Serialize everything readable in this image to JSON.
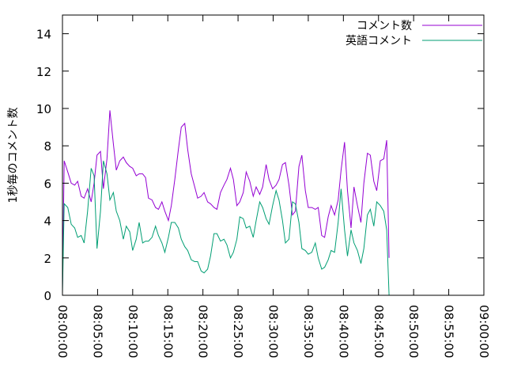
{
  "chart_data": {
    "type": "line",
    "title": "",
    "xlabel": "",
    "ylabel": "1秒毎のコメント数",
    "xlim": [
      "08:00:00",
      "09:00:00"
    ],
    "ylim": [
      0,
      15
    ],
    "yticks": [
      0,
      2,
      4,
      6,
      8,
      10,
      12,
      14
    ],
    "xticks": [
      "08:00:00",
      "08:05:00",
      "08:10:00",
      "08:15:00",
      "08:20:00",
      "08:25:00",
      "08:30:00",
      "08:35:00",
      "08:40:00",
      "08:45:00",
      "08:50:00",
      "08:55:00",
      "09:00:00"
    ],
    "grid": false,
    "legend_position": "top-right",
    "series": [
      {
        "name": "コメント数",
        "color": "#9400d3",
        "points": [
          [
            "08:00:00",
            0.4
          ],
          [
            "08:00:15",
            7.2
          ],
          [
            "08:00:45",
            6.6
          ],
          [
            "08:01:15",
            6.0
          ],
          [
            "08:01:45",
            5.9
          ],
          [
            "08:02:10",
            6.1
          ],
          [
            "08:02:40",
            5.3
          ],
          [
            "08:03:05",
            5.2
          ],
          [
            "08:03:35",
            5.7
          ],
          [
            "08:04:05",
            5.0
          ],
          [
            "08:04:30",
            6.0
          ],
          [
            "08:04:55",
            7.5
          ],
          [
            "08:05:25",
            7.7
          ],
          [
            "08:05:50",
            5.7
          ],
          [
            "08:06:20",
            7.3
          ],
          [
            "08:06:45",
            9.9
          ],
          [
            "08:07:15",
            8.1
          ],
          [
            "08:07:40",
            6.7
          ],
          [
            "08:08:10",
            7.2
          ],
          [
            "08:08:40",
            7.4
          ],
          [
            "08:09:05",
            7.1
          ],
          [
            "08:09:35",
            6.9
          ],
          [
            "08:10:00",
            6.8
          ],
          [
            "08:10:30",
            6.4
          ],
          [
            "08:10:55",
            6.5
          ],
          [
            "08:11:25",
            6.5
          ],
          [
            "08:11:50",
            6.3
          ],
          [
            "08:12:15",
            5.2
          ],
          [
            "08:12:45",
            5.1
          ],
          [
            "08:13:15",
            4.7
          ],
          [
            "08:13:40",
            4.6
          ],
          [
            "08:14:10",
            5.0
          ],
          [
            "08:14:35",
            4.5
          ],
          [
            "08:15:05",
            4.0
          ],
          [
            "08:15:30",
            4.8
          ],
          [
            "08:16:00",
            6.2
          ],
          [
            "08:16:30",
            7.8
          ],
          [
            "08:16:55",
            9.0
          ],
          [
            "08:17:25",
            9.2
          ],
          [
            "08:17:50",
            7.8
          ],
          [
            "08:18:20",
            6.5
          ],
          [
            "08:18:50",
            5.8
          ],
          [
            "08:19:15",
            5.2
          ],
          [
            "08:19:45",
            5.3
          ],
          [
            "08:20:10",
            5.5
          ],
          [
            "08:20:40",
            5.0
          ],
          [
            "08:21:05",
            4.9
          ],
          [
            "08:21:35",
            4.7
          ],
          [
            "08:22:00",
            4.6
          ],
          [
            "08:22:30",
            5.5
          ],
          [
            "08:23:00",
            5.9
          ],
          [
            "08:23:25",
            6.2
          ],
          [
            "08:23:55",
            6.8
          ],
          [
            "08:24:20",
            6.2
          ],
          [
            "08:24:50",
            4.8
          ],
          [
            "08:25:15",
            5.0
          ],
          [
            "08:25:45",
            5.5
          ],
          [
            "08:26:10",
            6.6
          ],
          [
            "08:26:40",
            6.1
          ],
          [
            "08:27:10",
            5.3
          ],
          [
            "08:27:35",
            5.8
          ],
          [
            "08:28:05",
            5.4
          ],
          [
            "08:28:30",
            5.8
          ],
          [
            "08:29:00",
            7.0
          ],
          [
            "08:29:25",
            6.2
          ],
          [
            "08:29:55",
            5.7
          ],
          [
            "08:30:25",
            5.9
          ],
          [
            "08:30:50",
            6.2
          ],
          [
            "08:31:20",
            7.0
          ],
          [
            "08:31:45",
            7.1
          ],
          [
            "08:32:15",
            5.9
          ],
          [
            "08:32:45",
            4.3
          ],
          [
            "08:33:10",
            4.5
          ],
          [
            "08:33:40",
            6.9
          ],
          [
            "08:34:05",
            7.5
          ],
          [
            "08:34:35",
            5.6
          ],
          [
            "08:35:00",
            4.7
          ],
          [
            "08:35:30",
            4.7
          ],
          [
            "08:36:00",
            4.6
          ],
          [
            "08:36:25",
            4.7
          ],
          [
            "08:36:55",
            3.2
          ],
          [
            "08:37:20",
            3.1
          ],
          [
            "08:37:50",
            4.2
          ],
          [
            "08:38:15",
            4.8
          ],
          [
            "08:38:45",
            4.3
          ],
          [
            "08:39:15",
            5.1
          ],
          [
            "08:39:40",
            6.7
          ],
          [
            "08:40:10",
            8.2
          ],
          [
            "08:40:35",
            5.6
          ],
          [
            "08:41:05",
            3.6
          ],
          [
            "08:41:30",
            5.8
          ],
          [
            "08:42:00",
            4.8
          ],
          [
            "08:42:30",
            3.9
          ],
          [
            "08:42:55",
            6.0
          ],
          [
            "08:43:25",
            7.6
          ],
          [
            "08:43:50",
            7.5
          ],
          [
            "08:44:20",
            6.1
          ],
          [
            "08:44:45",
            5.6
          ],
          [
            "08:45:15",
            7.2
          ],
          [
            "08:45:45",
            7.3
          ],
          [
            "08:46:10",
            8.3
          ],
          [
            "08:46:30",
            2.0
          ]
        ]
      },
      {
        "name": "英語コメント",
        "color": "#009e73",
        "points": [
          [
            "08:00:00",
            0.1
          ],
          [
            "08:00:15",
            4.9
          ],
          [
            "08:00:45",
            4.7
          ],
          [
            "08:01:15",
            3.8
          ],
          [
            "08:01:45",
            3.6
          ],
          [
            "08:02:10",
            3.1
          ],
          [
            "08:02:40",
            3.2
          ],
          [
            "08:03:05",
            2.8
          ],
          [
            "08:03:35",
            4.5
          ],
          [
            "08:04:05",
            6.8
          ],
          [
            "08:04:30",
            6.4
          ],
          [
            "08:04:55",
            2.5
          ],
          [
            "08:05:25",
            4.5
          ],
          [
            "08:05:50",
            7.2
          ],
          [
            "08:06:20",
            6.5
          ],
          [
            "08:06:45",
            5.1
          ],
          [
            "08:07:15",
            5.5
          ],
          [
            "08:07:40",
            4.5
          ],
          [
            "08:08:10",
            4.0
          ],
          [
            "08:08:40",
            3.0
          ],
          [
            "08:09:05",
            3.7
          ],
          [
            "08:09:35",
            3.4
          ],
          [
            "08:10:00",
            2.4
          ],
          [
            "08:10:30",
            3.0
          ],
          [
            "08:10:55",
            3.9
          ],
          [
            "08:11:25",
            2.8
          ],
          [
            "08:11:50",
            2.9
          ],
          [
            "08:12:15",
            2.9
          ],
          [
            "08:12:45",
            3.1
          ],
          [
            "08:13:15",
            3.7
          ],
          [
            "08:13:40",
            3.2
          ],
          [
            "08:14:10",
            2.8
          ],
          [
            "08:14:35",
            2.3
          ],
          [
            "08:15:05",
            3.1
          ],
          [
            "08:15:30",
            3.9
          ],
          [
            "08:16:00",
            3.9
          ],
          [
            "08:16:30",
            3.6
          ],
          [
            "08:16:55",
            3.0
          ],
          [
            "08:17:25",
            2.6
          ],
          [
            "08:17:50",
            2.4
          ],
          [
            "08:18:20",
            1.9
          ],
          [
            "08:18:50",
            1.8
          ],
          [
            "08:19:15",
            1.8
          ],
          [
            "08:19:45",
            1.3
          ],
          [
            "08:20:10",
            1.2
          ],
          [
            "08:20:40",
            1.4
          ],
          [
            "08:21:05",
            2.1
          ],
          [
            "08:21:35",
            3.3
          ],
          [
            "08:22:00",
            3.3
          ],
          [
            "08:22:30",
            2.9
          ],
          [
            "08:23:00",
            3.0
          ],
          [
            "08:23:25",
            2.7
          ],
          [
            "08:23:55",
            2.0
          ],
          [
            "08:24:20",
            2.3
          ],
          [
            "08:24:50",
            3.0
          ],
          [
            "08:25:15",
            4.2
          ],
          [
            "08:25:45",
            4.1
          ],
          [
            "08:26:10",
            3.6
          ],
          [
            "08:26:40",
            3.7
          ],
          [
            "08:27:10",
            3.1
          ],
          [
            "08:27:35",
            4.0
          ],
          [
            "08:28:05",
            5.0
          ],
          [
            "08:28:30",
            4.7
          ],
          [
            "08:29:00",
            4.1
          ],
          [
            "08:29:25",
            3.8
          ],
          [
            "08:29:55",
            4.8
          ],
          [
            "08:30:25",
            5.6
          ],
          [
            "08:30:50",
            5.1
          ],
          [
            "08:31:20",
            4.0
          ],
          [
            "08:31:45",
            2.8
          ],
          [
            "08:32:15",
            3.0
          ],
          [
            "08:32:45",
            5.0
          ],
          [
            "08:33:10",
            4.9
          ],
          [
            "08:33:40",
            3.9
          ],
          [
            "08:34:05",
            2.5
          ],
          [
            "08:34:35",
            2.4
          ],
          [
            "08:35:00",
            2.2
          ],
          [
            "08:35:30",
            2.3
          ],
          [
            "08:36:00",
            2.8
          ],
          [
            "08:36:25",
            2.0
          ],
          [
            "08:36:55",
            1.4
          ],
          [
            "08:37:20",
            1.5
          ],
          [
            "08:37:50",
            1.9
          ],
          [
            "08:38:15",
            2.4
          ],
          [
            "08:38:45",
            2.3
          ],
          [
            "08:39:15",
            3.9
          ],
          [
            "08:39:40",
            5.7
          ],
          [
            "08:40:10",
            3.5
          ],
          [
            "08:40:35",
            2.1
          ],
          [
            "08:41:05",
            3.5
          ],
          [
            "08:41:30",
            2.8
          ],
          [
            "08:42:00",
            2.4
          ],
          [
            "08:42:30",
            1.7
          ],
          [
            "08:42:55",
            2.5
          ],
          [
            "08:43:25",
            4.3
          ],
          [
            "08:43:50",
            4.6
          ],
          [
            "08:44:20",
            3.7
          ],
          [
            "08:44:45",
            5.0
          ],
          [
            "08:45:15",
            4.8
          ],
          [
            "08:45:45",
            4.5
          ],
          [
            "08:46:10",
            3.5
          ],
          [
            "08:46:30",
            0.0
          ]
        ]
      }
    ]
  }
}
